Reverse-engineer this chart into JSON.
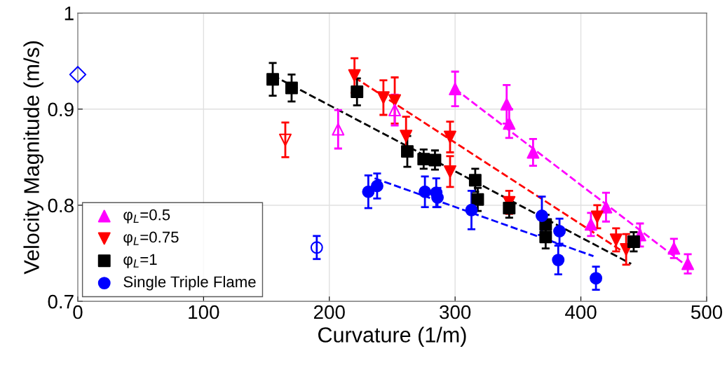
{
  "chart_data": {
    "type": "scatter",
    "xlabel": "Curvature (1/m)",
    "ylabel": "Velocity Magnitude (m/s)",
    "xlim": [
      0,
      500
    ],
    "xticks": [
      0,
      100,
      200,
      300,
      400,
      500
    ],
    "ylim": [
      0.7,
      1
    ],
    "yticks": [
      0.7,
      0.8,
      0.9,
      1
    ],
    "grid": true,
    "legend": "bottom left",
    "series": [
      {
        "name": "φ$_{L}$=0.5",
        "color": "#ff00ff",
        "marker": "triangle",
        "x": [
          300,
          341,
          343,
          362,
          408,
          420,
          447,
          474,
          485
        ],
        "values": [
          0.921,
          0.905,
          0.885,
          0.855,
          0.78,
          0.798,
          0.769,
          0.755,
          0.739
        ],
        "errors": [
          0.018,
          0.02,
          0.015,
          0.014,
          0.012,
          0.015,
          0.012,
          0.01,
          0.01
        ]
      },
      {
        "name": "φ$_{L}$=0.75",
        "color": "#ff0000",
        "marker": "triangle_down",
        "x": [
          220,
          243,
          252,
          261,
          296,
          296,
          343,
          413,
          428,
          436
        ],
        "values": [
          0.935,
          0.912,
          0.909,
          0.872,
          0.871,
          0.835,
          0.803,
          0.788,
          0.764,
          0.754
        ],
        "errors": [
          0.018,
          0.018,
          0.024,
          0.02,
          0.016,
          0.016,
          0.012,
          0.012,
          0.012,
          0.016
        ]
      },
      {
        "name": "φ$_{L}$=1",
        "color": "#000000",
        "marker": "square",
        "x": [
          155,
          170,
          222,
          262,
          275,
          284,
          316,
          318,
          343,
          372,
          372,
          442
        ],
        "values": [
          0.931,
          0.922,
          0.918,
          0.856,
          0.848,
          0.847,
          0.826,
          0.806,
          0.797,
          0.78,
          0.767,
          0.762
        ],
        "errors": [
          0.017,
          0.014,
          0.014,
          0.016,
          0.01,
          0.01,
          0.012,
          0.012,
          0.01,
          0.01,
          0.012,
          0.01
        ]
      },
      {
        "name": "Single Triple Flame",
        "color": "#0000ff",
        "marker": "circle",
        "x": [
          231,
          238,
          276,
          285,
          286,
          313,
          369,
          383,
          382,
          412
        ],
        "values": [
          0.814,
          0.82,
          0.814,
          0.813,
          0.808,
          0.795,
          0.789,
          0.773,
          0.743,
          0.724
        ],
        "errors": [
          0.017,
          0.013,
          0.016,
          0.015,
          0.01,
          0.02,
          0.02,
          0.013,
          0.015,
          0.012
        ]
      },
      {
        "color": "#ff00ff",
        "marker": "triangle",
        "x": [
          207,
          252
        ],
        "values": [
          0.879,
          0.899
        ],
        "errors": [
          0.02,
          0.016
        ]
      },
      {
        "color": "#ff0000",
        "marker": "triangle_down",
        "x": [
          165
        ],
        "values": [
          0.868
        ],
        "errors": [
          0.018
        ]
      },
      {
        "color": "#0000ff",
        "marker": "circle",
        "x": [
          190
        ],
        "values": [
          0.756
        ],
        "errors": [
          0.012
        ]
      },
      {
        "color": "#0000ff",
        "marker": "diamond",
        "x": [
          0
        ],
        "values": [
          0.936
        ]
      },
      {
        "type": "line",
        "color": "#ff00ff",
        "line_style": "dashed",
        "x": [
          300,
          483
        ],
        "values": [
          0.921,
          0.738
        ]
      },
      {
        "type": "line",
        "color": "#ff0000",
        "line_style": "dashed",
        "x": [
          220,
          432
        ],
        "values": [
          0.933,
          0.753
        ]
      },
      {
        "type": "line",
        "color": "#000000",
        "line_style": "dashed",
        "x": [
          155,
          440
        ],
        "values": [
          0.935,
          0.739
        ]
      },
      {
        "type": "line",
        "color": "#0000ff",
        "line_style": "dashed",
        "x": [
          236,
          410
        ],
        "values": [
          0.828,
          0.747
        ]
      }
    ]
  }
}
